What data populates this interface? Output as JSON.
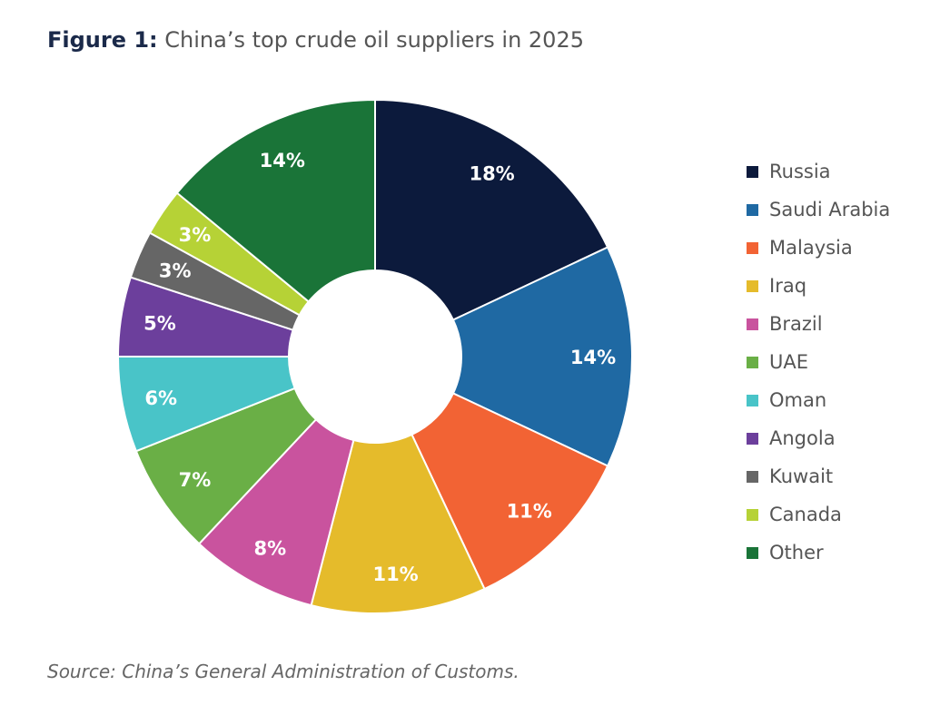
{
  "title": {
    "prefix": "Figure 1:",
    "text": " China’s top crude oil suppliers in 2025"
  },
  "source": "Source: China’s General Administration of Customs.",
  "chart_data": {
    "type": "pie",
    "style": "donut",
    "legend_position": "right",
    "unit": "%",
    "categories": [
      "Russia",
      "Saudi Arabia",
      "Malaysia",
      "Iraq",
      "Brazil",
      "UAE",
      "Oman",
      "Angola",
      "Kuwait",
      "Canada",
      "Other"
    ],
    "values": [
      18,
      14,
      11,
      11,
      8,
      7,
      6,
      5,
      3,
      3,
      14
    ],
    "labels": [
      "18%",
      "14%",
      "11%",
      "11%",
      "8%",
      "7%",
      "6%",
      "5%",
      "3%",
      "3%",
      "14%"
    ],
    "colors": [
      "#0c1a3c",
      "#1f69a3",
      "#f26334",
      "#e5bb2b",
      "#c9539e",
      "#6aaf46",
      "#49c4c8",
      "#6c3f9c",
      "#666666",
      "#b6d236",
      "#1a7438"
    ]
  }
}
